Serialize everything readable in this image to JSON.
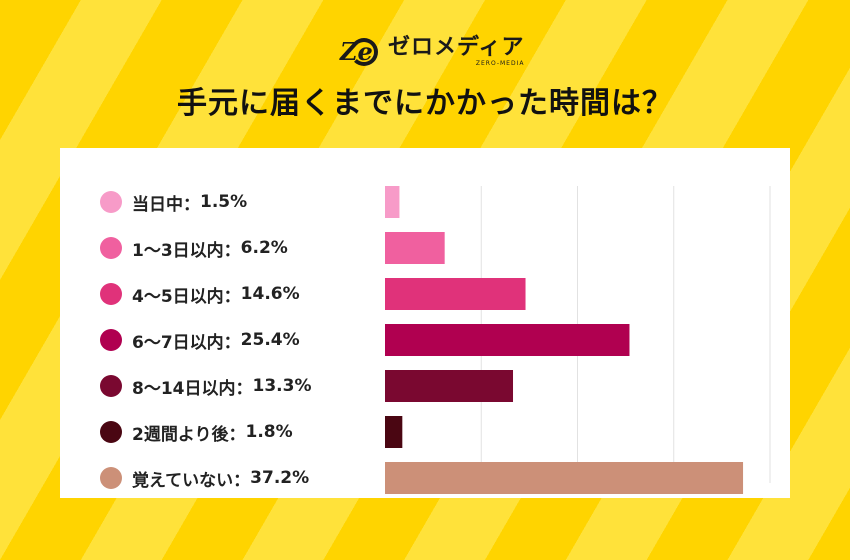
{
  "logo": {
    "mark_letters": "Ze",
    "name_jp": "ゼロメディア",
    "name_en": "ZERO-MEDIA"
  },
  "title": "手元に届くまでにかかった時間は？",
  "chart_data": {
    "type": "bar",
    "orientation": "horizontal",
    "title": "手元に届くまでにかかった時間は？",
    "categories": [
      "当日中",
      "1〜3日以内",
      "4〜5日以内",
      "6〜7日以内",
      "8〜14日以内",
      "2週間より後",
      "覚えていない"
    ],
    "values": [
      1.5,
      6.2,
      14.6,
      25.4,
      13.3,
      1.8,
      37.2
    ],
    "value_labels": [
      "1.5%",
      "6.2%",
      "14.6%",
      "25.4%",
      "13.3%",
      "1.8%",
      "37.2%"
    ],
    "separator": "：",
    "colors": [
      "#f79bc8",
      "#f0609f",
      "#e0327a",
      "#b00050",
      "#7a0830",
      "#4a0612",
      "#cc9078"
    ],
    "xlim": [
      0,
      40
    ],
    "grid": true,
    "legend": "left"
  }
}
